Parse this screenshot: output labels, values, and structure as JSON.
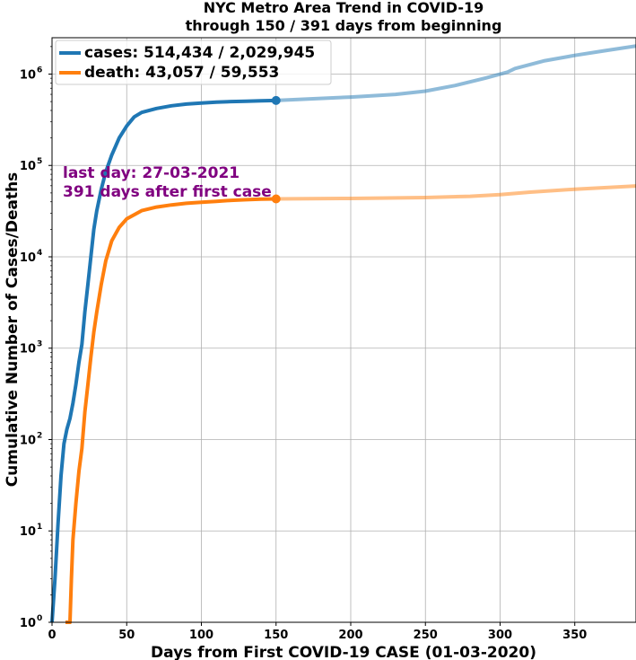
{
  "chart_data": {
    "type": "line",
    "title": "NYC Metro Area Trend in COVID-19",
    "subtitle": "through 150 / 391 days from beginning",
    "xlabel": "Days from First COVID-19 CASE (01-03-2020)",
    "ylabel": "Cumulative Number of Cases/Deaths",
    "xlim": [
      0,
      391
    ],
    "ylim": [
      1,
      2500000
    ],
    "yscale": "log",
    "grid": true,
    "legend_position": "top-left",
    "x_ticks": [
      0,
      50,
      100,
      150,
      200,
      250,
      300,
      350
    ],
    "y_ticks": [
      {
        "value": 1,
        "base": "10",
        "exp": "0"
      },
      {
        "value": 10,
        "base": "10",
        "exp": "1"
      },
      {
        "value": 100,
        "base": "10",
        "exp": "2"
      },
      {
        "value": 1000,
        "base": "10",
        "exp": "3"
      },
      {
        "value": 10000,
        "base": "10",
        "exp": "4"
      },
      {
        "value": 100000,
        "base": "10",
        "exp": "5"
      },
      {
        "value": 1000000,
        "base": "10",
        "exp": "6"
      }
    ],
    "annotation": [
      "last day: 27-03-2021",
      "391 days after first case"
    ],
    "current_day": 150,
    "series": [
      {
        "name": "cases: 514,434 / 2,029,945",
        "color": "#1f77b4",
        "values_through_day": [
          [
            0,
            1
          ],
          [
            2,
            3
          ],
          [
            4,
            12
          ],
          [
            6,
            40
          ],
          [
            8,
            90
          ],
          [
            10,
            130
          ],
          [
            12,
            170
          ],
          [
            14,
            250
          ],
          [
            16,
            400
          ],
          [
            18,
            700
          ],
          [
            20,
            1100
          ],
          [
            22,
            2500
          ],
          [
            24,
            5000
          ],
          [
            26,
            10000
          ],
          [
            28,
            20000
          ],
          [
            30,
            32000
          ],
          [
            33,
            55000
          ],
          [
            36,
            85000
          ],
          [
            40,
            130000
          ],
          [
            45,
            200000
          ],
          [
            50,
            270000
          ],
          [
            55,
            340000
          ],
          [
            60,
            380000
          ],
          [
            70,
            420000
          ],
          [
            80,
            450000
          ],
          [
            90,
            470000
          ],
          [
            100,
            482000
          ],
          [
            110,
            492000
          ],
          [
            120,
            500000
          ],
          [
            130,
            505000
          ],
          [
            140,
            510000
          ],
          [
            150,
            514434
          ]
        ],
        "values_after_day": [
          [
            150,
            514434
          ],
          [
            200,
            560000
          ],
          [
            230,
            600000
          ],
          [
            250,
            650000
          ],
          [
            270,
            750000
          ],
          [
            290,
            900000
          ],
          [
            305,
            1050000
          ],
          [
            310,
            1150000
          ],
          [
            330,
            1400000
          ],
          [
            350,
            1600000
          ],
          [
            370,
            1800000
          ],
          [
            391,
            2029945
          ]
        ],
        "current_value": 514434
      },
      {
        "name": "death: 43,057 / 59,553",
        "color": "#ff7f0e",
        "values_through_day": [
          [
            9,
            1
          ],
          [
            12,
            1
          ],
          [
            13,
            3
          ],
          [
            14,
            8
          ],
          [
            16,
            20
          ],
          [
            18,
            45
          ],
          [
            20,
            80
          ],
          [
            22,
            200
          ],
          [
            24,
            400
          ],
          [
            26,
            800
          ],
          [
            28,
            1500
          ],
          [
            30,
            2500
          ],
          [
            33,
            5000
          ],
          [
            36,
            9000
          ],
          [
            40,
            15000
          ],
          [
            45,
            21000
          ],
          [
            50,
            26000
          ],
          [
            60,
            32000
          ],
          [
            70,
            35000
          ],
          [
            80,
            37000
          ],
          [
            90,
            38500
          ],
          [
            100,
            39500
          ],
          [
            110,
            40500
          ],
          [
            120,
            41500
          ],
          [
            130,
            42200
          ],
          [
            140,
            42700
          ],
          [
            150,
            43057
          ]
        ],
        "values_after_day": [
          [
            150,
            43057
          ],
          [
            200,
            43500
          ],
          [
            250,
            44500
          ],
          [
            280,
            46000
          ],
          [
            300,
            48000
          ],
          [
            320,
            51000
          ],
          [
            350,
            55000
          ],
          [
            391,
            59553
          ]
        ],
        "current_value": 43057
      }
    ]
  }
}
